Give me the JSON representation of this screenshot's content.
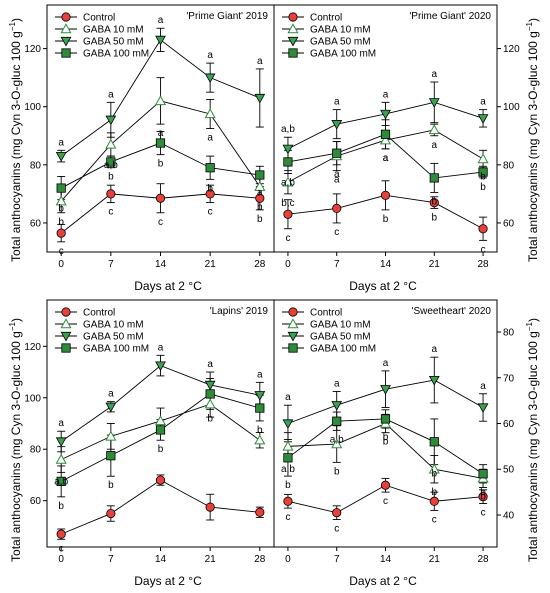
{
  "ylabel": "Total anthocyanins (mg Cyn 3-O-gluc 100 g",
  "ylabel_sup": "−1",
  "ylabel_close": ")",
  "xlabel": "Days at 2 °C",
  "legend": [
    "Control",
    "GABA  10 mM",
    "GABA  50 mM",
    "GABA 100 mM"
  ],
  "colors": {
    "control": "#e8413a",
    "g10": "#5fbf78",
    "g50": "#3aa24e",
    "g100": "#2e8b3a",
    "line": "#000000"
  },
  "chart_data": [
    {
      "type": "line",
      "title": "'Prime Giant' 2019",
      "x": [
        0,
        7,
        14,
        21,
        28
      ],
      "ylim": [
        50,
        135
      ],
      "yticks": [
        60,
        80,
        100,
        120
      ],
      "yaxis": "left",
      "series": [
        {
          "name": "Control",
          "values": [
            56.5,
            70,
            68.5,
            70,
            68.5
          ],
          "err": [
            3,
            3,
            5,
            3,
            4
          ],
          "letters": [
            "c",
            "c",
            "c",
            "c",
            "b"
          ]
        },
        {
          "name": "GABA  10 mM",
          "values": [
            67.5,
            87,
            102,
            97.5,
            72.5
          ],
          "err": [
            4,
            4,
            8,
            5,
            4
          ],
          "letters": [
            "b",
            "a,b",
            "a",
            "a",
            "b"
          ]
        },
        {
          "name": "GABA  50 mM",
          "values": [
            83,
            95.5,
            123,
            110,
            103
          ],
          "err": [
            2,
            6,
            4,
            5,
            10
          ],
          "letters": [
            "a",
            "a",
            "a",
            "a",
            "a"
          ]
        },
        {
          "name": "GABA 100 mM",
          "values": [
            72,
            81,
            87.5,
            79,
            76.5
          ],
          "err": [
            4,
            2,
            4,
            4,
            3
          ],
          "letters": [
            "b",
            "b",
            "b",
            "b",
            "a"
          ]
        }
      ]
    },
    {
      "type": "line",
      "title": "'Prime Giant' 2020",
      "x": [
        0,
        7,
        14,
        21,
        28
      ],
      "ylim": [
        50,
        135
      ],
      "yticks": [
        60,
        80,
        100,
        120
      ],
      "yaxis": "right",
      "series": [
        {
          "name": "Control",
          "values": [
            63,
            65,
            69.5,
            67,
            58
          ],
          "err": [
            5,
            5,
            5,
            2,
            4
          ],
          "letters": [
            "c",
            "c",
            "b",
            "b",
            "c"
          ]
        },
        {
          "name": "GABA  10 mM",
          "values": [
            74,
            83,
            88.5,
            92,
            82
          ],
          "err": [
            4,
            5,
            3,
            2,
            3
          ],
          "letters": [
            "b,c",
            "a",
            "a",
            "a",
            "b"
          ]
        },
        {
          "name": "GABA  50 mM",
          "values": [
            85.5,
            94,
            97.5,
            101.5,
            96
          ],
          "err": [
            4,
            5,
            4,
            7,
            3
          ],
          "letters": [
            "a,b",
            "a",
            "a",
            "a",
            "a"
          ]
        },
        {
          "name": "GABA 100 mM",
          "values": [
            81,
            84,
            90.5,
            75.5,
            77.5
          ],
          "err": [
            4,
            4,
            5,
            5,
            2
          ],
          "letters": [
            "a,b",
            "a",
            "a",
            "b",
            "b"
          ]
        }
      ]
    },
    {
      "type": "line",
      "title": "'Lapins' 2019",
      "x": [
        0,
        7,
        14,
        21,
        28
      ],
      "ylim": [
        42,
        138
      ],
      "yticks": [
        60,
        80,
        100,
        120
      ],
      "yaxis": "left",
      "series": [
        {
          "name": "Control",
          "values": [
            47,
            55,
            68,
            57.5,
            55.5
          ],
          "err": [
            2,
            3,
            2,
            5,
            2
          ],
          "letters": [
            "c",
            "",
            "",
            "",
            ""
          ]
        },
        {
          "name": "GABA  10 mM",
          "values": [
            76,
            85,
            91,
            97.5,
            83.5
          ],
          "err": [
            5,
            5,
            5,
            5,
            3
          ],
          "letters": [
            "a,b",
            "",
            "",
            "",
            ""
          ]
        },
        {
          "name": "GABA  50 mM",
          "values": [
            83,
            96.5,
            112.5,
            105,
            101
          ],
          "err": [
            4,
            2,
            4,
            5,
            5
          ],
          "letters": [
            "a",
            "a",
            "a",
            "a",
            "a"
          ]
        },
        {
          "name": "GABA 100 mM",
          "values": [
            67.5,
            77.5,
            87.5,
            101.5,
            96
          ],
          "err": [
            6,
            8,
            4,
            6,
            5
          ],
          "letters": [
            "b",
            "b",
            "b",
            "b",
            "b"
          ]
        }
      ]
    },
    {
      "type": "line",
      "title": "'Sweetheart' 2020",
      "x": [
        0,
        7,
        14,
        21,
        28
      ],
      "ylim": [
        33,
        87
      ],
      "yticks": [
        40,
        50,
        60,
        70,
        80
      ],
      "yaxis": "right",
      "series": [
        {
          "name": "Control",
          "values": [
            43,
            40.5,
            46.5,
            43,
            44
          ],
          "err": [
            1.5,
            1.5,
            1.5,
            2,
            1.5
          ],
          "letters": [
            "c",
            "c",
            "c",
            "c",
            "c"
          ]
        },
        {
          "name": "GABA  10 mM",
          "values": [
            55,
            55.5,
            60,
            50,
            48
          ],
          "err": [
            3,
            4,
            2,
            3,
            2
          ],
          "letters": [
            "a,b",
            "b",
            "b",
            "b",
            "b"
          ]
        },
        {
          "name": "GABA  50 mM",
          "values": [
            60,
            64,
            67.5,
            69.5,
            63.5
          ],
          "err": [
            4,
            3,
            4,
            5,
            3
          ],
          "letters": [
            "a",
            "a",
            "a",
            "a",
            "a"
          ]
        },
        {
          "name": "GABA 100 mM",
          "values": [
            52.5,
            60.5,
            61,
            56,
            49
          ],
          "err": [
            4,
            2,
            2,
            5,
            2
          ],
          "letters": [
            "b",
            "a,b",
            "b",
            "b",
            "b"
          ]
        }
      ]
    }
  ]
}
